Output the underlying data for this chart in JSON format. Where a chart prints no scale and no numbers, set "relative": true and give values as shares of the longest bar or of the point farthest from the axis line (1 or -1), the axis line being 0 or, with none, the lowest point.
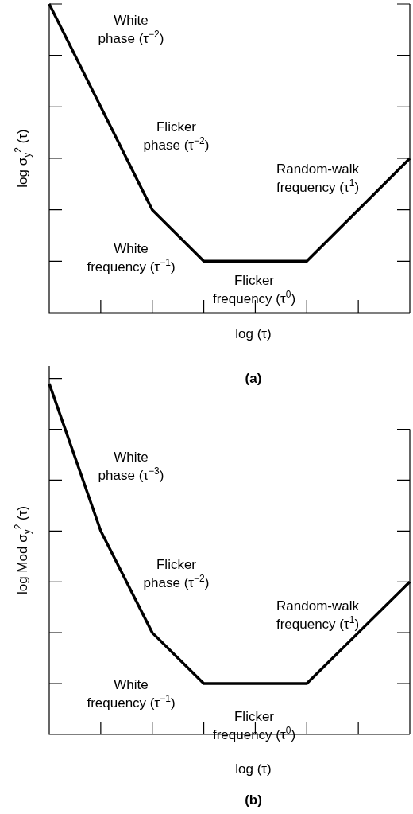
{
  "chart_data": [
    {
      "type": "line",
      "title": "(a)",
      "xlabel": "log (τ)",
      "ylabel": "log σ$_{y}$$^{2}$ (τ)",
      "relative": true,
      "marker": "none",
      "line_style": "solid",
      "grid": false,
      "categories": [
        null,
        null,
        null,
        null,
        null,
        null,
        null,
        null
      ],
      "series": [
        {
          "color": "#000000",
          "values": [
            1,
            0.667,
            0.333,
            0.167,
            0.167,
            0.167,
            0.333,
            0.5
          ]
        }
      ],
      "annotations": [
        "White\nphase (τ$^{−2}$)",
        "Flicker\nphase (τ$^{−2}$)",
        "Random-walk\nfrequency (τ$^{1}$)",
        "White\nfrequency (τ$^{−1}$)",
        "Flicker\nfrequency (τ$^{0}$)"
      ]
    },
    {
      "type": "line",
      "title": "(b)",
      "xlabel": "log (τ)",
      "ylabel": "log Mod σ$_{y}$$^{2}$ (τ)",
      "relative": true,
      "marker": "none",
      "line_style": "solid",
      "grid": false,
      "categories": [
        null,
        null,
        null,
        null,
        null,
        null,
        null,
        null
      ],
      "series": [
        {
          "color": "#000000",
          "values": [
            1,
            0.58,
            0.29,
            0.145,
            0.145,
            0.145,
            0.29,
            0.435
          ]
        }
      ],
      "annotations": [
        "White\nphase (τ$^{−3}$)",
        "Flicker\nphase (τ$^{−2}$)",
        "Random-walk\nfrequency (τ$^{1}$)",
        "White\nfrequency (τ$^{−1}$)",
        "Flicker\nfrequency (τ$^{0}$)"
      ]
    }
  ]
}
